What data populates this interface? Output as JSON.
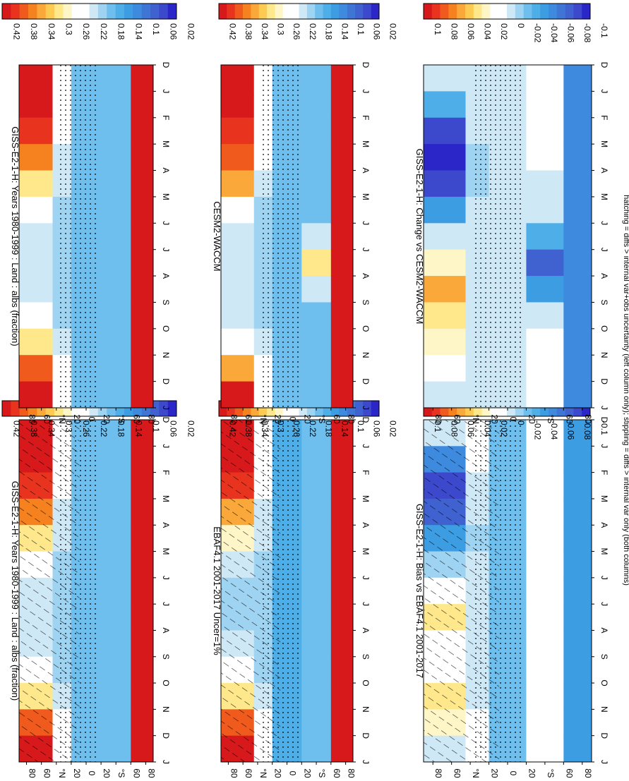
{
  "footnote": "hatching = diffs > internal var+obs uncertainty (left column only); stippling = diffs > internal var only (both columns)",
  "colorbars": {
    "absolute": {
      "labels": [
        "0.42",
        "0.38",
        "0.34",
        "0.3",
        "0.26",
        "0.22",
        "0.18",
        "0.14",
        "0.1",
        "0.06",
        "0.02"
      ],
      "colors": [
        "#d7191c",
        "#e8341e",
        "#f05a1d",
        "#f6811f",
        "#fba83a",
        "#fecb52",
        "#fee88b",
        "#fff6c8",
        "#ffffff",
        "#ffffff",
        "#cfe8f6",
        "#9fd3f2",
        "#6fbfee",
        "#4eaee8",
        "#3c9de3",
        "#3d8ade",
        "#3f76d6",
        "#3f62d0",
        "#3c49cc",
        "#2a26c8"
      ]
    },
    "difference": {
      "labels": [
        "0.1",
        "0.08",
        "0.06",
        "0.04",
        "0.02",
        "0",
        "-0.02",
        "-0.04",
        "-0.06",
        "-0.08",
        "-0.1"
      ],
      "colors": [
        "#d7191c",
        "#e8341e",
        "#f05a1d",
        "#f6811f",
        "#fba83a",
        "#fecb52",
        "#fee88b",
        "#fff6c8",
        "#ffffff",
        "#ffffff",
        "#cfe8f6",
        "#9fd3f2",
        "#6fbfee",
        "#4eaee8",
        "#3c9de3",
        "#3d8ade",
        "#3f76d6",
        "#3f62d0",
        "#3c49cc",
        "#2a26c8"
      ]
    }
  },
  "chart_data": [
    {
      "type": "heatmap",
      "title": "GISS-E2-1-H: Years 1980-1999 : Land : albs (fraction)",
      "x": [
        "D",
        "J",
        "F",
        "M",
        "A",
        "M",
        "J",
        "J",
        "A",
        "S",
        "O",
        "N",
        "D",
        "J"
      ],
      "ytick_labels": [
        "80",
        "60",
        "°N",
        "20",
        "0",
        "20",
        "°S",
        "60",
        "80"
      ],
      "colorbar": "absolute",
      "hatching": true,
      "stippling": true,
      "zones": [
        {
          "band": "80N-45N",
          "values": [
            0.42,
            0.42,
            0.4,
            0.36,
            0.3,
            0.24,
            0.22,
            0.22,
            0.22,
            0.24,
            0.3,
            0.38,
            0.42
          ]
        },
        {
          "band": "45N-20N",
          "values": [
            0.24,
            0.24,
            0.23,
            0.22,
            0.2,
            0.19,
            0.18,
            0.18,
            0.18,
            0.19,
            0.21,
            0.23,
            0.24
          ]
        },
        {
          "band": "20N-20S",
          "values": [
            0.16,
            0.16,
            0.16,
            0.16,
            0.16,
            0.16,
            0.16,
            0.16,
            0.16,
            0.16,
            0.16,
            0.16,
            0.16
          ]
        },
        {
          "band": "20S-60S",
          "values": [
            0.17,
            0.17,
            0.17,
            0.17,
            0.17,
            0.17,
            0.17,
            0.17,
            0.17,
            0.17,
            0.17,
            0.17,
            0.17
          ]
        },
        {
          "band": "60S-90S",
          "values": [
            0.42,
            0.42,
            0.42,
            0.42,
            0.42,
            0.42,
            0.42,
            0.42,
            0.42,
            0.42,
            0.42,
            0.42,
            0.42
          ]
        }
      ]
    },
    {
      "type": "heatmap",
      "title": "EBAF4.1 2001-2017 Uncer=1%",
      "x": [
        "D",
        "J",
        "F",
        "M",
        "A",
        "M",
        "J",
        "J",
        "A",
        "S",
        "O",
        "N",
        "D",
        "J"
      ],
      "ytick_labels": [
        "80",
        "60",
        "°N",
        "20",
        "0",
        "20",
        "°S",
        "60",
        "80"
      ],
      "colorbar": "absolute",
      "hatching": true,
      "stippling": true,
      "zones": [
        {
          "band": "80N-45N",
          "values": [
            0.42,
            0.42,
            0.4,
            0.34,
            0.28,
            0.22,
            0.19,
            0.19,
            0.2,
            0.23,
            0.3,
            0.38,
            0.42
          ]
        },
        {
          "band": "45N-20N",
          "values": [
            0.24,
            0.24,
            0.23,
            0.22,
            0.2,
            0.19,
            0.18,
            0.18,
            0.18,
            0.19,
            0.21,
            0.23,
            0.24
          ]
        },
        {
          "band": "20N-20S",
          "values": [
            0.15,
            0.15,
            0.15,
            0.15,
            0.15,
            0.15,
            0.15,
            0.15,
            0.15,
            0.15,
            0.15,
            0.15,
            0.15
          ]
        },
        {
          "band": "20S-60S",
          "values": [
            0.16,
            0.16,
            0.16,
            0.16,
            0.16,
            0.16,
            0.16,
            0.16,
            0.16,
            0.16,
            0.16,
            0.16,
            0.16
          ]
        },
        {
          "band": "60S-90S",
          "values": [
            0.42,
            0.42,
            0.42,
            0.42,
            0.42,
            0.42,
            0.42,
            0.42,
            0.42,
            0.42,
            0.42,
            0.42,
            0.42
          ]
        }
      ]
    },
    {
      "type": "heatmap",
      "title": "GISS-E2-1-H: Bias vs EBAF4.1 2001-2017",
      "x": [
        "D",
        "J",
        "F",
        "M",
        "A",
        "M",
        "J",
        "J",
        "A",
        "S",
        "O",
        "N",
        "D",
        "J"
      ],
      "ytick_labels": [
        "80",
        "60",
        "°N",
        "20",
        "0",
        "20",
        "°S",
        "60",
        "80"
      ],
      "colorbar": "difference",
      "hatching": true,
      "stippling": true,
      "zones": [
        {
          "band": "80N-45N",
          "values": [
            0.0,
            -0.06,
            -0.09,
            -0.08,
            -0.05,
            -0.02,
            0.02,
            0.04,
            0.02,
            0.01,
            0.04,
            0.03,
            0.0
          ]
        },
        {
          "band": "45N-20N",
          "values": [
            0.02,
            0.01,
            0.0,
            -0.01,
            -0.02,
            -0.01,
            0.0,
            0.0,
            -0.01,
            -0.01,
            0.0,
            0.01,
            0.02
          ]
        },
        {
          "band": "20N-20S",
          "values": [
            -0.03,
            -0.03,
            -0.03,
            -0.03,
            -0.03,
            -0.03,
            -0.03,
            -0.03,
            -0.03,
            -0.03,
            -0.03,
            -0.03,
            -0.03
          ]
        },
        {
          "band": "20S-60S",
          "values": [
            0.01,
            0.01,
            0.01,
            0.01,
            0.01,
            0.01,
            0.01,
            0.01,
            0.01,
            0.01,
            0.01,
            0.01,
            0.01
          ]
        },
        {
          "band": "60S-90S",
          "values": [
            -0.05,
            -0.05,
            -0.05,
            -0.05,
            -0.05,
            -0.05,
            -0.05,
            -0.05,
            -0.05,
            -0.05,
            -0.05,
            -0.05,
            -0.05
          ]
        }
      ]
    },
    {
      "type": "heatmap",
      "title": "GISS-E2-1-H: Years 1980-1999 : Land : albs (fraction)",
      "x": [
        "D",
        "J",
        "F",
        "M",
        "A",
        "M",
        "J",
        "J",
        "A",
        "S",
        "O",
        "N",
        "D",
        "J"
      ],
      "ytick_labels": [
        "80",
        "60",
        "°N",
        "20",
        "0",
        "20",
        "°S",
        "60",
        "80"
      ],
      "colorbar": "absolute",
      "hatching": false,
      "stippling": true,
      "zones": [
        {
          "band": "80N-45N",
          "values": [
            0.42,
            0.42,
            0.4,
            0.36,
            0.3,
            0.24,
            0.22,
            0.22,
            0.22,
            0.24,
            0.3,
            0.38,
            0.42
          ]
        },
        {
          "band": "45N-20N",
          "values": [
            0.24,
            0.24,
            0.23,
            0.22,
            0.2,
            0.19,
            0.18,
            0.18,
            0.18,
            0.19,
            0.21,
            0.23,
            0.24
          ]
        },
        {
          "band": "20N-20S",
          "values": [
            0.16,
            0.16,
            0.16,
            0.16,
            0.16,
            0.16,
            0.16,
            0.16,
            0.16,
            0.16,
            0.16,
            0.16,
            0.16
          ]
        },
        {
          "band": "20S-60S",
          "values": [
            0.17,
            0.17,
            0.17,
            0.17,
            0.17,
            0.17,
            0.17,
            0.17,
            0.17,
            0.17,
            0.17,
            0.17,
            0.17
          ]
        },
        {
          "band": "60S-90S",
          "values": [
            0.42,
            0.42,
            0.42,
            0.42,
            0.42,
            0.42,
            0.42,
            0.42,
            0.42,
            0.42,
            0.42,
            0.42,
            0.42
          ]
        }
      ]
    },
    {
      "type": "heatmap",
      "title": "CESM2-WACCM",
      "x": [
        "D",
        "J",
        "F",
        "M",
        "A",
        "M",
        "J",
        "J",
        "A",
        "S",
        "O",
        "N",
        "D",
        "J"
      ],
      "ytick_labels": [
        "80",
        "60",
        "°N",
        "20",
        "0",
        "20",
        "°S",
        "60",
        "80"
      ],
      "colorbar": "absolute",
      "hatching": false,
      "stippling": true,
      "zones": [
        {
          "band": "80N-45N",
          "values": [
            0.42,
            0.42,
            0.41,
            0.38,
            0.33,
            0.26,
            0.22,
            0.2,
            0.21,
            0.22,
            0.26,
            0.34,
            0.42
          ]
        },
        {
          "band": "45N-20N",
          "values": [
            0.25,
            0.25,
            0.24,
            0.23,
            0.21,
            0.19,
            0.18,
            0.18,
            0.18,
            0.19,
            0.21,
            0.23,
            0.25
          ]
        },
        {
          "band": "20N-20S",
          "values": [
            0.16,
            0.16,
            0.16,
            0.16,
            0.16,
            0.16,
            0.16,
            0.16,
            0.16,
            0.16,
            0.16,
            0.16,
            0.16
          ]
        },
        {
          "band": "20S-60S",
          "values": [
            0.16,
            0.16,
            0.16,
            0.16,
            0.16,
            0.17,
            0.2,
            0.3,
            0.22,
            0.17,
            0.16,
            0.16,
            0.16
          ]
        },
        {
          "band": "60S-90S",
          "values": [
            0.42,
            0.42,
            0.42,
            0.42,
            0.42,
            0.42,
            0.42,
            0.42,
            0.42,
            0.42,
            0.42,
            0.42,
            0.42
          ]
        }
      ]
    },
    {
      "type": "heatmap",
      "title": "GISS-E2-1-H: Change vs CESM2-WACCM",
      "x": [
        "D",
        "J",
        "F",
        "M",
        "A",
        "M",
        "J",
        "J",
        "A",
        "S",
        "O",
        "N",
        "D",
        "J"
      ],
      "ytick_labels": [
        "80",
        "60",
        "°N",
        "20",
        "0",
        "20",
        "°S",
        "60",
        "80"
      ],
      "colorbar": "difference",
      "hatching": false,
      "stippling": true,
      "zones": [
        {
          "band": "80N-45N",
          "values": [
            0.0,
            -0.04,
            -0.09,
            -0.1,
            -0.09,
            -0.05,
            0.0,
            0.03,
            0.06,
            0.04,
            0.03,
            0.02,
            0.0
          ]
        },
        {
          "band": "45N-20N",
          "values": [
            -0.01,
            -0.01,
            -0.01,
            -0.02,
            -0.02,
            -0.01,
            0.0,
            0.0,
            0.0,
            0.0,
            0.0,
            -0.01,
            -0.01
          ]
        },
        {
          "band": "20N-20S",
          "values": [
            0.0,
            0.0,
            0.0,
            0.0,
            0.0,
            0.0,
            0.0,
            0.0,
            0.0,
            0.0,
            0.0,
            0.0,
            0.0
          ]
        },
        {
          "band": "20S-60S",
          "values": [
            0.01,
            0.01,
            0.01,
            0.01,
            0.0,
            -0.01,
            -0.04,
            -0.08,
            -0.05,
            -0.01,
            0.01,
            0.01,
            0.01
          ]
        },
        {
          "band": "60S-90S",
          "values": [
            -0.06,
            -0.06,
            -0.06,
            -0.06,
            -0.06,
            -0.06,
            -0.06,
            -0.06,
            -0.06,
            -0.06,
            -0.06,
            -0.06,
            -0.06
          ]
        }
      ]
    }
  ]
}
